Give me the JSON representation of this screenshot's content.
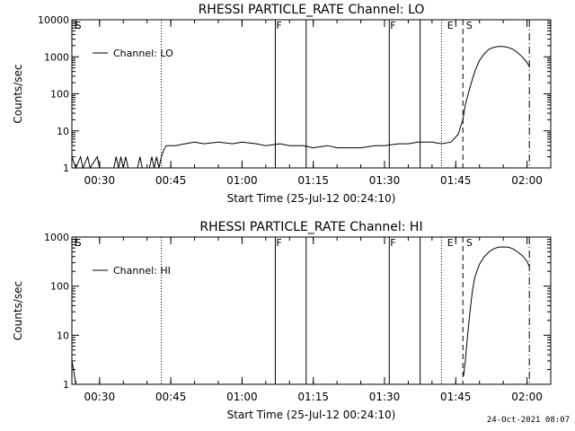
{
  "footer": {
    "timestamp": "24-Oct-2021 08:07"
  },
  "chart_data": [
    {
      "type": "line",
      "title": "RHESSI PARTICLE_RATE Channel: LO",
      "xlabel": "Start Time (25-Jul-12 00:24:10)",
      "ylabel": "Counts/sec",
      "yscale": "log",
      "ylim": [
        1,
        10000
      ],
      "yticks": [
        "1",
        "10",
        "100",
        "1000",
        "10000"
      ],
      "xlim": [
        "00:24:10",
        "02:05:00"
      ],
      "xticks": [
        "00:30",
        "00:45",
        "01:00",
        "01:15",
        "01:30",
        "01:45",
        "02:00"
      ],
      "legend": "Channel: LO",
      "legend_position": "top-left",
      "flags": [
        {
          "label": "E",
          "time": "00:24:30"
        },
        {
          "label": "S",
          "time": "00:24:40"
        },
        {
          "label": "F",
          "time": "01:07:00"
        },
        {
          "label": "F",
          "time": "01:31:00"
        },
        {
          "label": "E",
          "time": "01:43:00"
        },
        {
          "label": "S",
          "time": "01:47:00"
        }
      ],
      "markers": [
        {
          "style": "dotted",
          "time": "00:43:00"
        },
        {
          "style": "solid",
          "time": "01:07:00"
        },
        {
          "style": "solid",
          "time": "01:13:30"
        },
        {
          "style": "solid",
          "time": "01:31:00"
        },
        {
          "style": "solid",
          "time": "01:37:30"
        },
        {
          "style": "dotted",
          "time": "01:42:00"
        },
        {
          "style": "dashed",
          "time": "01:46:30"
        },
        {
          "style": "dashdot",
          "time": "02:00:30"
        }
      ],
      "series": [
        {
          "x": [
            "00:24:10",
            "00:25:00",
            "00:26:00",
            "00:26:30",
            "00:27:30",
            "00:28:00",
            "00:29:30",
            "00:30:00",
            "00:33:00",
            "00:33:30",
            "00:34:00",
            "00:34:30",
            "00:35:00",
            "00:35:30",
            "00:36:00",
            "00:38:00",
            "00:38:30",
            "00:39:00",
            "00:40:30",
            "00:41:00",
            "00:41:30",
            "00:42:00",
            "00:42:30",
            "00:43:00",
            "00:43:30",
            "00:44:00",
            "00:46:00",
            "00:48:00",
            "00:50:00",
            "00:52:00",
            "00:55:00",
            "00:58:00",
            "01:00:00",
            "01:03:00",
            "01:05:00",
            "01:08:00",
            "01:10:00",
            "01:13:00",
            "01:15:00",
            "01:18:00",
            "01:20:00",
            "01:23:00",
            "01:25:00",
            "01:28:00",
            "01:30:00",
            "01:33:00",
            "01:35:00",
            "01:37:00",
            "01:40:00",
            "01:42:00",
            "01:44:00",
            "01:45:30",
            "01:46:30",
            "01:47:00",
            "01:48:00",
            "01:49:00",
            "01:50:00",
            "01:51:00",
            "01:52:00",
            "01:53:00",
            "01:54:00",
            "01:55:00",
            "01:56:00",
            "01:57:00",
            "01:58:00",
            "01:59:00",
            "02:00:00",
            "02:00:30"
          ],
          "y": [
            2,
            1,
            2,
            1,
            2,
            1,
            2,
            1,
            1,
            2,
            1,
            2,
            1,
            2,
            1,
            1,
            2,
            1,
            1,
            2,
            1,
            2,
            1,
            2,
            3,
            4,
            4,
            4.5,
            5,
            4.5,
            5,
            4.5,
            5,
            4.5,
            4,
            4.5,
            4,
            4,
            3.5,
            4,
            3.5,
            3.5,
            3.5,
            4,
            4,
            4.5,
            4.5,
            5,
            5,
            4.5,
            5,
            8,
            20,
            50,
            150,
            400,
            800,
            1200,
            1600,
            1800,
            1900,
            1900,
            1800,
            1600,
            1300,
            1000,
            700,
            550
          ]
        }
      ]
    },
    {
      "type": "line",
      "title": "RHESSI PARTICLE_RATE Channel: HI",
      "xlabel": "Start Time (25-Jul-12 00:24:10)",
      "ylabel": "Counts/sec",
      "yscale": "log",
      "ylim": [
        1,
        1000
      ],
      "yticks": [
        "1",
        "10",
        "100",
        "1000"
      ],
      "xlim": [
        "00:24:10",
        "02:05:00"
      ],
      "xticks": [
        "00:30",
        "00:45",
        "01:00",
        "01:15",
        "01:30",
        "01:45",
        "02:00"
      ],
      "legend": "Channel: HI",
      "legend_position": "top-left",
      "flags": [
        {
          "label": "E",
          "time": "00:24:30"
        },
        {
          "label": "S",
          "time": "00:24:40"
        },
        {
          "label": "F",
          "time": "01:07:00"
        },
        {
          "label": "F",
          "time": "01:31:00"
        },
        {
          "label": "E",
          "time": "01:43:00"
        },
        {
          "label": "S",
          "time": "01:47:00"
        }
      ],
      "markers": [
        {
          "style": "dotted",
          "time": "00:43:00"
        },
        {
          "style": "solid",
          "time": "01:07:00"
        },
        {
          "style": "solid",
          "time": "01:13:30"
        },
        {
          "style": "solid",
          "time": "01:31:00"
        },
        {
          "style": "solid",
          "time": "01:37:30"
        },
        {
          "style": "dotted",
          "time": "01:42:00"
        },
        {
          "style": "dashed",
          "time": "01:46:30"
        },
        {
          "style": "dashdot",
          "time": "02:00:30"
        }
      ],
      "series": [
        {
          "x": [
            "00:24:10",
            "00:24:30",
            "00:25:00"
          ],
          "y": [
            3,
            2,
            1
          ]
        },
        {
          "x": [
            "01:46:40",
            "01:47:00",
            "01:47:30",
            "01:48:00",
            "01:48:30",
            "01:49:00",
            "01:50:00",
            "01:51:00",
            "01:52:00",
            "01:53:00",
            "01:54:00",
            "01:55:00",
            "01:56:00",
            "01:57:00",
            "01:58:00",
            "01:59:00",
            "02:00:00",
            "02:00:30"
          ],
          "y": [
            1.5,
            3,
            10,
            30,
            80,
            150,
            280,
            400,
            500,
            580,
            620,
            630,
            620,
            580,
            500,
            420,
            320,
            250
          ]
        }
      ]
    }
  ]
}
